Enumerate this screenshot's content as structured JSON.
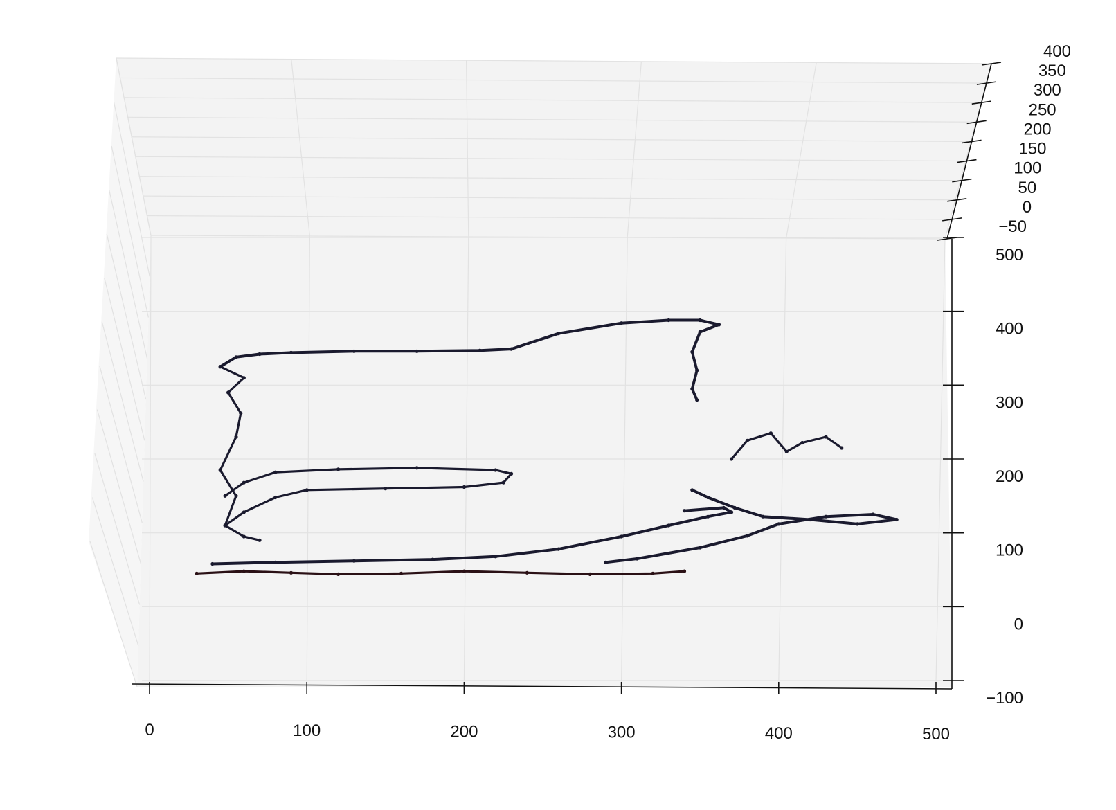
{
  "chart_data": {
    "type": "scatter",
    "projection": "3d",
    "title": "",
    "x_axis": {
      "label": "",
      "range": [
        0,
        500
      ],
      "ticks": [
        "0",
        "100",
        "200",
        "300",
        "400",
        "500"
      ]
    },
    "y_axis": {
      "label": "",
      "range": [
        -100,
        500
      ],
      "ticks": [
        "−100",
        "0",
        "100",
        "200",
        "300",
        "400",
        "500"
      ]
    },
    "z_axis": {
      "label": "",
      "range": [
        -50,
        400
      ],
      "ticks": [
        "−50",
        "0",
        "50",
        "100",
        "150",
        "200",
        "250",
        "300",
        "350",
        "400"
      ]
    },
    "grid": true,
    "pane_color": "#f3f3f3",
    "grid_color": "#e2e2e2",
    "marker_colors": [
      "#1a1a2e",
      "#2a1015"
    ],
    "series": [
      {
        "id": "outline-top",
        "points": [
          [
            45,
            325
          ],
          [
            55,
            338
          ],
          [
            70,
            342
          ],
          [
            90,
            344
          ],
          [
            130,
            346
          ],
          [
            170,
            346
          ],
          [
            210,
            347
          ],
          [
            230,
            349
          ],
          [
            260,
            370
          ],
          [
            300,
            384
          ],
          [
            330,
            388
          ],
          [
            350,
            388
          ],
          [
            362,
            382
          ],
          [
            350,
            372
          ],
          [
            345,
            345
          ],
          [
            348,
            320
          ],
          [
            345,
            295
          ],
          [
            348,
            280
          ]
        ]
      },
      {
        "id": "outline-left-upper",
        "points": [
          [
            45,
            325
          ],
          [
            60,
            310
          ],
          [
            50,
            290
          ],
          [
            58,
            262
          ],
          [
            55,
            230
          ],
          [
            45,
            185
          ],
          [
            55,
            150
          ],
          [
            48,
            110
          ],
          [
            60,
            95
          ],
          [
            70,
            90
          ]
        ]
      },
      {
        "id": "outline-mid",
        "points": [
          [
            48,
            110
          ],
          [
            60,
            128
          ],
          [
            80,
            148
          ],
          [
            100,
            158
          ],
          [
            150,
            160
          ],
          [
            200,
            162
          ],
          [
            225,
            168
          ],
          [
            230,
            180
          ],
          [
            220,
            185
          ],
          [
            170,
            188
          ],
          [
            120,
            186
          ],
          [
            80,
            182
          ],
          [
            60,
            168
          ],
          [
            48,
            150
          ]
        ]
      },
      {
        "id": "body-lower",
        "points": [
          [
            40,
            58
          ],
          [
            80,
            60
          ],
          [
            130,
            62
          ],
          [
            180,
            64
          ],
          [
            220,
            68
          ],
          [
            260,
            78
          ],
          [
            300,
            95
          ],
          [
            330,
            110
          ],
          [
            355,
            122
          ],
          [
            370,
            128
          ],
          [
            365,
            134
          ],
          [
            340,
            130
          ]
        ]
      },
      {
        "id": "tail",
        "points": [
          [
            345,
            158
          ],
          [
            355,
            148
          ],
          [
            372,
            134
          ],
          [
            390,
            122
          ],
          [
            420,
            118
          ],
          [
            450,
            112
          ],
          [
            475,
            118
          ],
          [
            460,
            125
          ],
          [
            430,
            122
          ],
          [
            400,
            112
          ],
          [
            380,
            96
          ],
          [
            350,
            80
          ],
          [
            310,
            65
          ],
          [
            290,
            60
          ]
        ]
      },
      {
        "id": "fin-cluster",
        "points": [
          [
            370,
            200
          ],
          [
            380,
            225
          ],
          [
            395,
            235
          ],
          [
            405,
            210
          ],
          [
            415,
            222
          ],
          [
            430,
            230
          ],
          [
            440,
            215
          ]
        ]
      },
      {
        "id": "base-script",
        "points": [
          [
            30,
            45
          ],
          [
            60,
            48
          ],
          [
            90,
            46
          ],
          [
            120,
            44
          ],
          [
            160,
            45
          ],
          [
            200,
            48
          ],
          [
            240,
            46
          ],
          [
            280,
            44
          ],
          [
            320,
            45
          ],
          [
            340,
            48
          ]
        ]
      }
    ]
  }
}
